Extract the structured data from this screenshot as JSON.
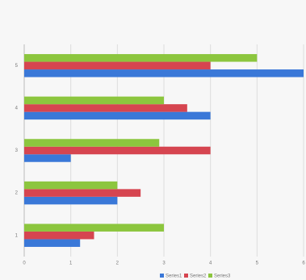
{
  "chart_data": {
    "type": "hbar",
    "categories": [
      "1",
      "2",
      "3",
      "4",
      "5"
    ],
    "series": [
      {
        "name": "Series1",
        "color": "#3a78d8",
        "values": [
          1.2,
          2,
          1,
          4,
          6
        ]
      },
      {
        "name": "Series2",
        "color": "#d64550",
        "values": [
          1.5,
          2.5,
          4,
          3.5,
          4
        ]
      },
      {
        "name": "Series3",
        "color": "#8cc63e",
        "values": [
          3,
          2,
          2.9,
          3,
          5
        ]
      }
    ],
    "xlim": [
      0,
      6
    ],
    "xticks": [
      0,
      1,
      2,
      3,
      4,
      5,
      6
    ],
    "grid": true,
    "legend": "bottom"
  }
}
